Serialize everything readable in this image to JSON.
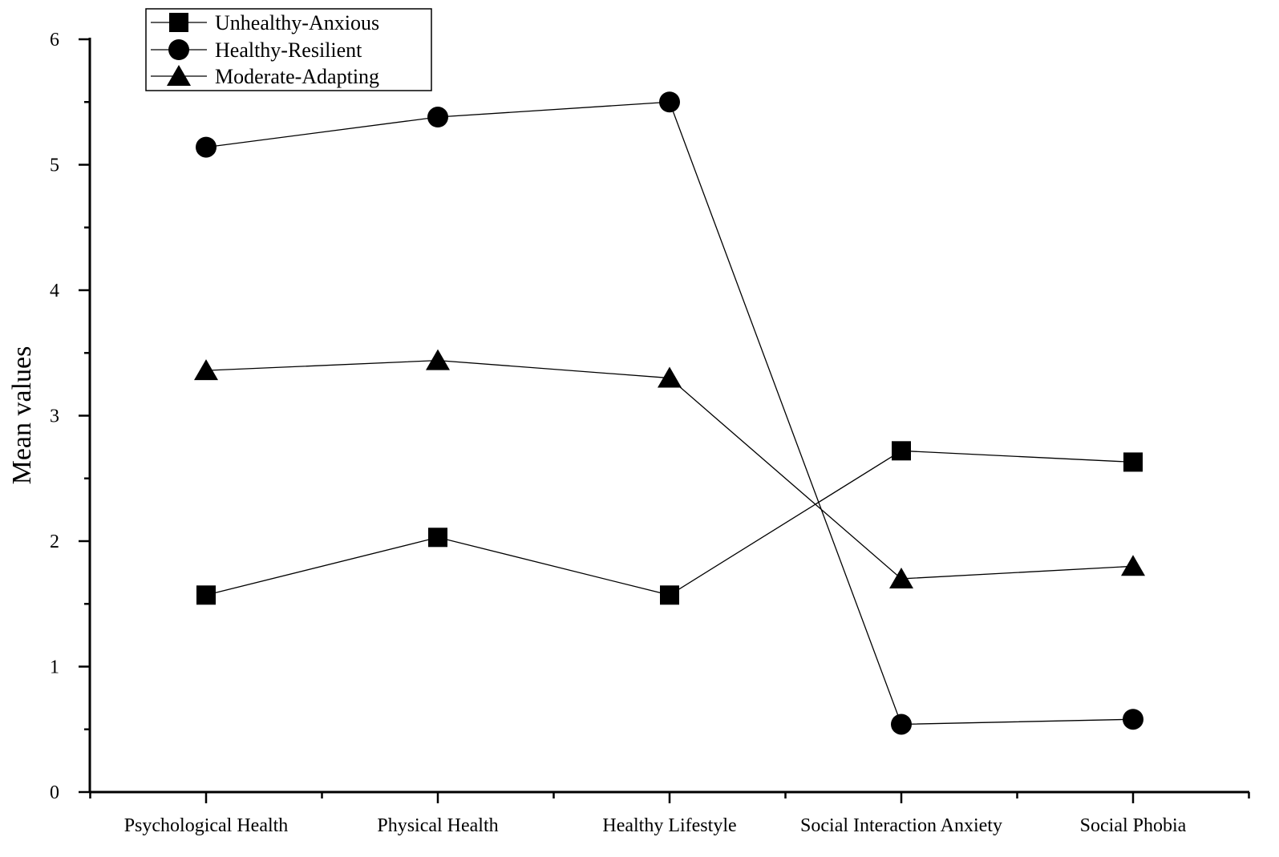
{
  "chart_data": {
    "type": "line",
    "title": "",
    "xlabel": "",
    "ylabel": "Mean values",
    "categories": [
      "Psychological Health",
      "Physical Health",
      "Healthy Lifestyle",
      "Social Interaction Anxiety",
      "Social Phobia"
    ],
    "ylim": [
      0,
      6
    ],
    "yticks": [
      0,
      1,
      2,
      3,
      4,
      5,
      6
    ],
    "grid": false,
    "legend_position": "top-left",
    "series": [
      {
        "name": "Unhealthy-Anxious",
        "marker": "square",
        "values": [
          1.57,
          2.03,
          1.57,
          2.72,
          2.63
        ]
      },
      {
        "name": "Healthy-Resilient",
        "marker": "circle",
        "values": [
          5.14,
          5.38,
          5.5,
          0.54,
          0.58
        ]
      },
      {
        "name": "Moderate-Adapting",
        "marker": "triangle",
        "values": [
          3.36,
          3.44,
          3.3,
          1.7,
          1.8
        ]
      }
    ],
    "colors": {
      "line": "#000000",
      "marker": "#000000"
    }
  }
}
